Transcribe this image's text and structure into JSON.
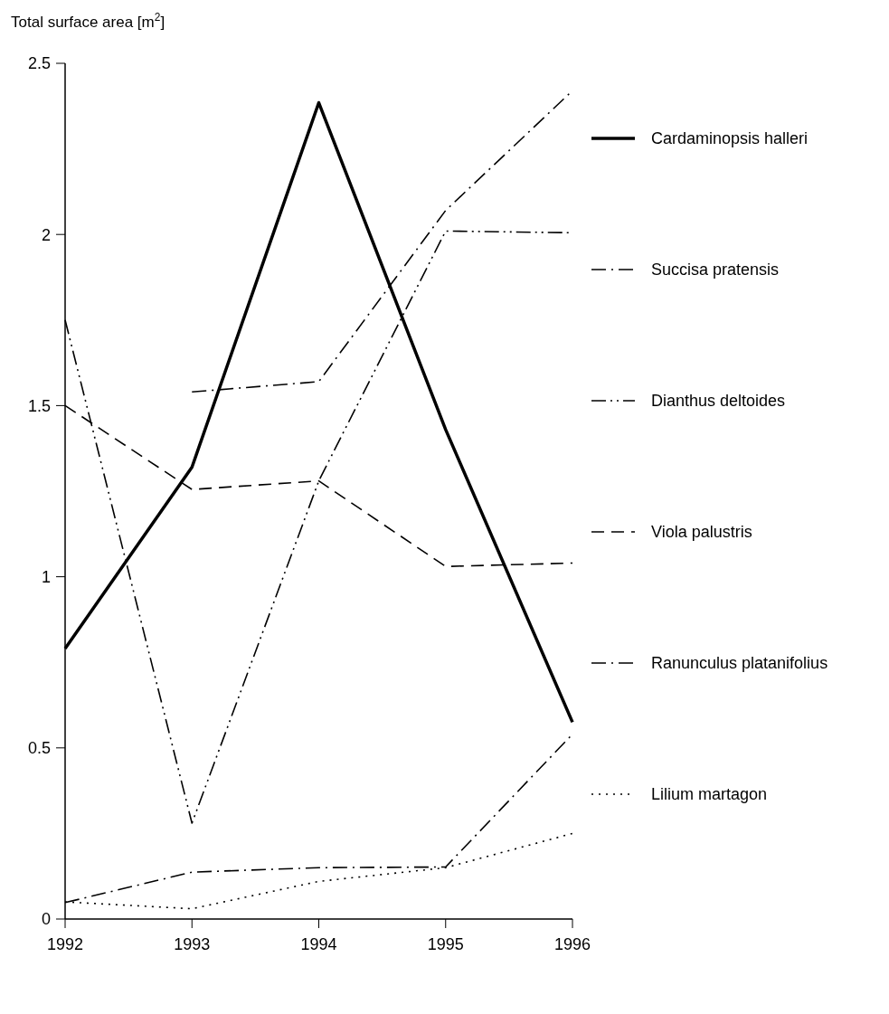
{
  "chart_data": {
    "type": "line",
    "ylabel": "Total surface area [m$^{2}$]",
    "x": [
      1992,
      1993,
      1994,
      1995,
      1996
    ],
    "xlim": [
      1992,
      1996
    ],
    "xticks": [
      1992,
      1993,
      1994,
      1995,
      1996
    ],
    "ylim": [
      0,
      2.5
    ],
    "yticks": [
      0,
      0.5,
      1,
      1.5,
      2,
      2.5
    ],
    "grid": false,
    "legend": "right",
    "series": [
      {
        "name": "Cardaminopsis halleri",
        "color": "#000000",
        "line_style": "solid",
        "values": [
          0.79,
          1.32,
          2.385,
          1.43,
          0.575
        ]
      },
      {
        "name": "Succisa pratensis",
        "color": "#000000",
        "line_style": "dashdot",
        "values": [
          null,
          1.54,
          1.57,
          2.07,
          2.42
        ]
      },
      {
        "name": "Dianthus deltoides",
        "color": "#000000",
        "line_style": "dashdotdot",
        "values": [
          1.75,
          0.28,
          1.28,
          2.01,
          2.005
        ]
      },
      {
        "name": "Viola palustris",
        "color": "#000000",
        "line_style": "dashed",
        "values": [
          1.5,
          1.255,
          1.28,
          1.03,
          1.04
        ]
      },
      {
        "name": "Ranunculus platanifolius",
        "color": "#000000",
        "line_style": "dashdot",
        "values": [
          0.048,
          0.137,
          0.15,
          0.152,
          0.54
        ]
      },
      {
        "name": "Lilium martagon",
        "color": "#000000",
        "line_style": "dotted",
        "values": [
          0.05,
          0.03,
          0.11,
          0.15,
          0.25
        ]
      }
    ]
  }
}
